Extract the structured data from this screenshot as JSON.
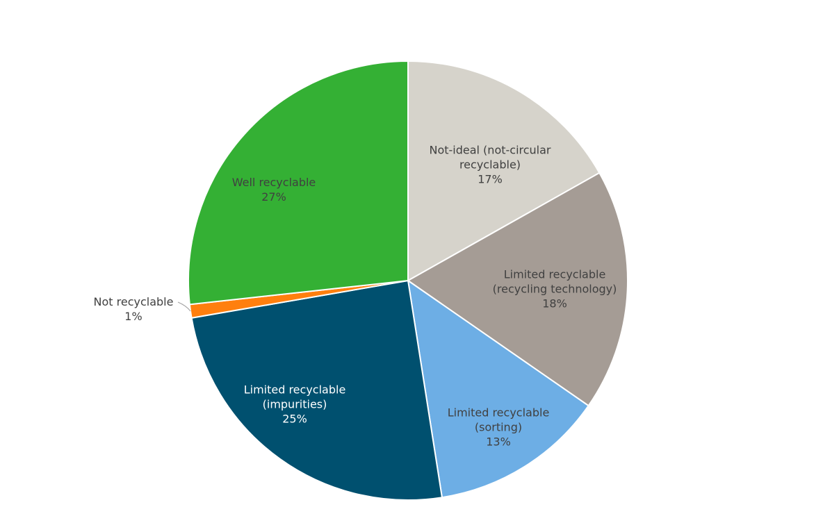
{
  "chart_data": {
    "type": "pie",
    "categories": [
      "Not-ideal (not-circular recyclable)",
      "Limited recyclable (recycling technology)",
      "Limited recyclable (sorting)",
      "Limited recyclable (impurities)",
      "Not recyclable",
      "Well recyclable"
    ],
    "values": [
      17,
      18,
      13,
      25,
      1,
      27
    ],
    "value_labels": [
      "17%",
      "18%",
      "13%",
      "25%",
      "1%",
      "27%"
    ],
    "colors": [
      "#d6d3cb",
      "#a59c95",
      "#6daee5",
      "#00506f",
      "#ff7f0e",
      "#34b034"
    ]
  }
}
